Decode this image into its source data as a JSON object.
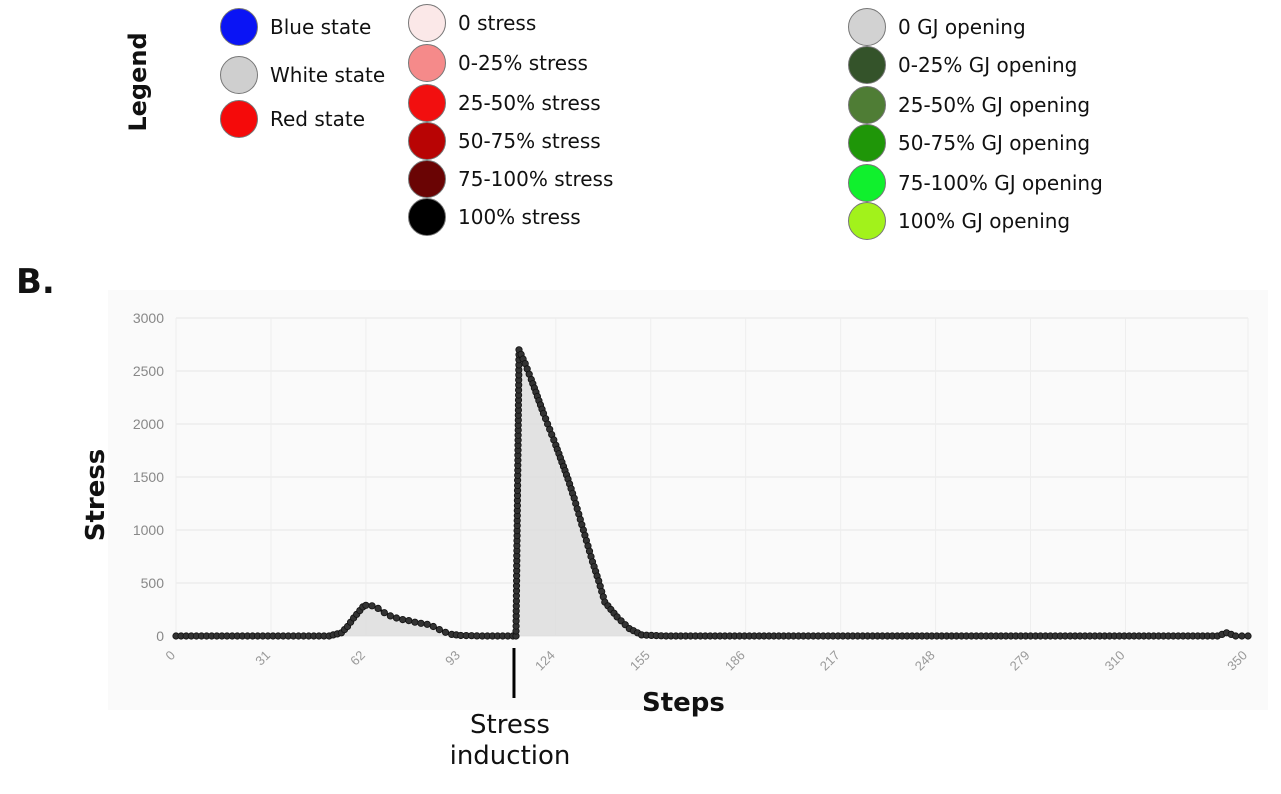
{
  "legend": {
    "title": "Legend",
    "states": [
      {
        "label": "Blue state",
        "color": "#0a14f5"
      },
      {
        "label": "White state",
        "color": "#cfcfcf"
      },
      {
        "label": "Red state",
        "color": "#f50a0a"
      }
    ],
    "stress": [
      {
        "label": "0 stress",
        "color": "#fbe8e8"
      },
      {
        "label": "0-25% stress",
        "color": "#f58a8a"
      },
      {
        "label": "25-50% stress",
        "color": "#f20f0f"
      },
      {
        "label": "50-75% stress",
        "color": "#b80404"
      },
      {
        "label": "75-100% stress",
        "color": "#6a0404"
      },
      {
        "label": "100% stress",
        "color": "#000000"
      }
    ],
    "gj": [
      {
        "label": "0  GJ opening",
        "color": "#d2d2d2"
      },
      {
        "label": "0-25% GJ opening",
        "color": "#34532a"
      },
      {
        "label": "25-50% GJ opening",
        "color": "#4f7d35"
      },
      {
        "label": "50-75% GJ opening",
        "color": "#1f9608"
      },
      {
        "label": "75-100% GJ opening",
        "color": "#10f02d"
      },
      {
        "label": "100% GJ opening",
        "color": "#a2f21b"
      }
    ]
  },
  "panel_label": "B.",
  "annotation": {
    "label_line1": "Stress",
    "label_line2": "induction",
    "step": 111
  },
  "chart_data": {
    "type": "area",
    "xlabel": "Steps",
    "ylabel": "Stress",
    "xlim": [
      0,
      350
    ],
    "ylim": [
      0,
      3000
    ],
    "xticks": [
      "0",
      "31",
      "62",
      "93",
      "124",
      "155",
      "186",
      "217",
      "248",
      "279",
      "310",
      "350"
    ],
    "yticks": [
      "0",
      "500",
      "1000",
      "1500",
      "2000",
      "2500",
      "3000"
    ],
    "grid": true,
    "series": [
      {
        "color": "#111111",
        "fill": "#dcdcdc",
        "x": [
          0,
          10,
          20,
          30,
          40,
          50,
          54,
          56,
          58,
          60,
          61,
          62,
          64,
          66,
          68,
          70,
          72,
          74,
          76,
          78,
          80,
          82,
          84,
          86,
          88,
          90,
          93,
          100,
          110,
          111,
          112,
          114,
          116,
          118,
          120,
          122,
          124,
          126,
          128,
          130,
          132,
          134,
          136,
          138,
          140,
          144,
          148,
          152,
          160,
          200,
          250,
          300,
          340,
          343,
          346,
          350
        ],
        "y": [
          0,
          0,
          0,
          0,
          0,
          0,
          30,
          90,
          170,
          240,
          275,
          290,
          285,
          260,
          220,
          190,
          170,
          155,
          145,
          130,
          120,
          110,
          90,
          60,
          35,
          15,
          5,
          0,
          0,
          0,
          2700,
          2570,
          2420,
          2260,
          2100,
          1950,
          1800,
          1640,
          1480,
          1300,
          1100,
          900,
          700,
          520,
          320,
          180,
          70,
          10,
          0,
          0,
          0,
          0,
          0,
          30,
          0,
          0
        ]
      }
    ]
  }
}
